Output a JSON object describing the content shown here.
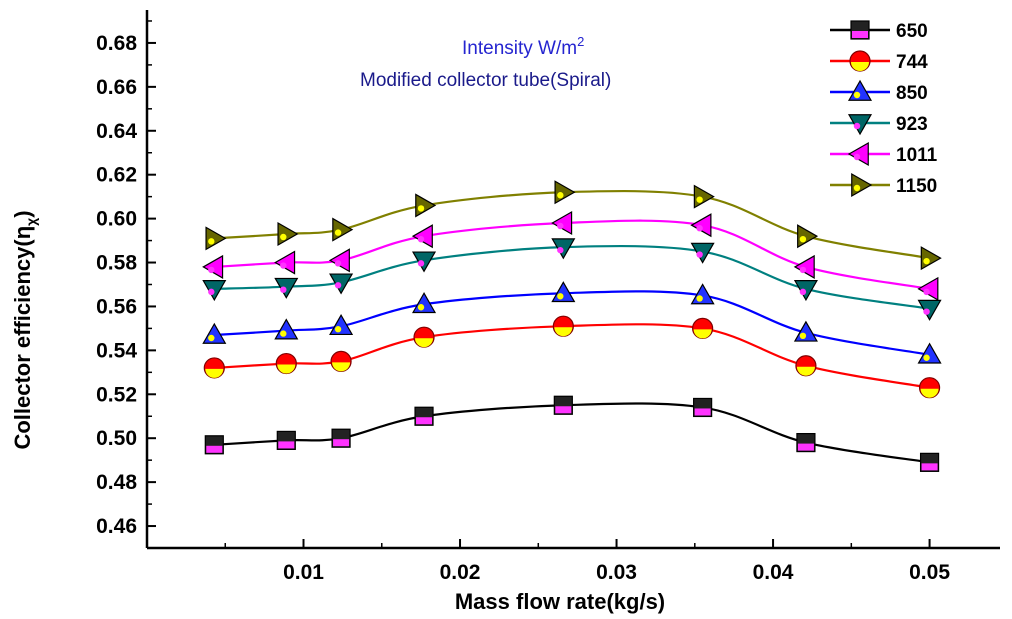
{
  "chart_data": {
    "type": "line",
    "title": "",
    "annotations": {
      "line1_main": "Intensity W/m",
      "line1_sup": "2",
      "line2": "Modified collector tube(Spiral)",
      "line1_color": "#2525d0",
      "line2_color": "#1a1a8a"
    },
    "xlabel": "Mass flow rate(kg/s)",
    "ylabel_main": "Collector efficiency(η",
    "ylabel_sub": "χ",
    "ylabel_close": ")",
    "xlim": [
      0.0,
      0.0545
    ],
    "ylim": [
      0.45,
      0.695
    ],
    "xticks": [
      0.01,
      0.02,
      0.03,
      0.04,
      0.05
    ],
    "xtick_labels": [
      "0.01",
      "0.02",
      "0.03",
      "0.04",
      "0.05"
    ],
    "yticks": [
      0.46,
      0.48,
      0.5,
      0.52,
      0.54,
      0.56,
      0.58,
      0.6,
      0.62,
      0.64,
      0.66,
      0.68
    ],
    "ytick_labels": [
      "0.46",
      "0.48",
      "0.50",
      "0.52",
      "0.54",
      "0.56",
      "0.58",
      "0.60",
      "0.62",
      "0.64",
      "0.66",
      "0.68"
    ],
    "legend_position": "top-right",
    "x": [
      0.0043,
      0.0089,
      0.0124,
      0.0177,
      0.0266,
      0.0355,
      0.0421,
      0.05
    ],
    "series": [
      {
        "name": "650",
        "marker": "square",
        "color": "#000000",
        "marker_fill": "#222222",
        "accent": "#ff33ff",
        "values": [
          0.497,
          0.499,
          0.5,
          0.51,
          0.515,
          0.514,
          0.498,
          0.489
        ]
      },
      {
        "name": "744",
        "marker": "circle",
        "color": "#ff0000",
        "marker_fill": "#ff0000",
        "accent": "#ffff00",
        "values": [
          0.532,
          0.534,
          0.535,
          0.546,
          0.551,
          0.55,
          0.533,
          0.523
        ]
      },
      {
        "name": "850",
        "marker": "triangle-up",
        "color": "#0000ff",
        "marker_fill": "#2233ff",
        "accent": "#ffff00",
        "values": [
          0.547,
          0.549,
          0.551,
          0.561,
          0.566,
          0.565,
          0.548,
          0.538
        ]
      },
      {
        "name": "923",
        "marker": "triangle-down",
        "color": "#008080",
        "marker_fill": "#006666",
        "accent": "#ff33ff",
        "values": [
          0.568,
          0.569,
          0.571,
          0.581,
          0.587,
          0.585,
          0.568,
          0.559
        ]
      },
      {
        "name": "1011",
        "marker": "triangle-left",
        "color": "#ff00ff",
        "marker_fill": "#ff00ff",
        "accent": "#ff33ff",
        "values": [
          0.578,
          0.58,
          0.581,
          0.592,
          0.598,
          0.597,
          0.578,
          0.568
        ]
      },
      {
        "name": "1150",
        "marker": "triangle-right",
        "color": "#808000",
        "marker_fill": "#666600",
        "accent": "#ffff00",
        "values": [
          0.591,
          0.593,
          0.595,
          0.606,
          0.612,
          0.61,
          0.592,
          0.582
        ]
      }
    ]
  }
}
